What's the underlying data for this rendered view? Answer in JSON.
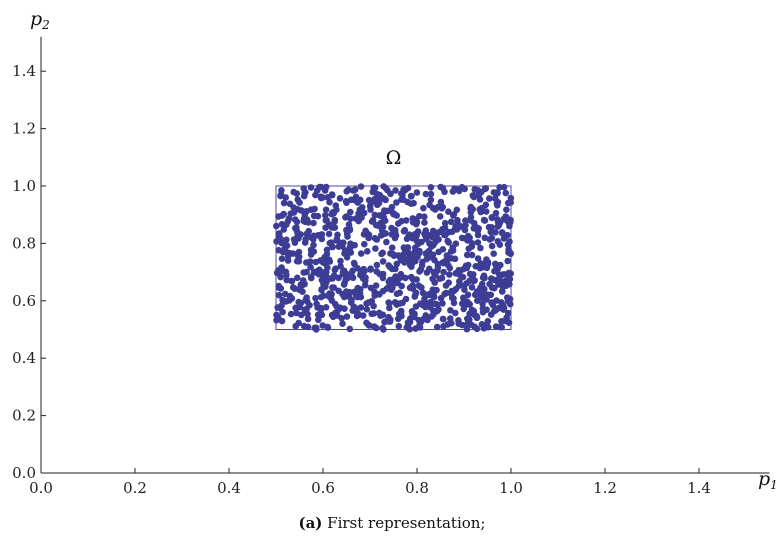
{
  "chart_data": {
    "type": "scatter",
    "title": "",
    "xlabel": "p",
    "xlabel_sub": "1",
    "ylabel": "p",
    "ylabel_sub": "2",
    "xlim": [
      0,
      1.55
    ],
    "ylim": [
      0,
      1.52
    ],
    "xticks": [
      0.0,
      0.2,
      0.4,
      0.6,
      0.8,
      1.0,
      1.2,
      1.4
    ],
    "yticks": [
      0.0,
      0.2,
      0.4,
      0.6,
      0.8,
      1.0,
      1.2,
      1.4
    ],
    "xtick_labels": [
      "0.0",
      "0.2",
      "0.4",
      "0.6",
      "0.8",
      "1.0",
      "1.2",
      "1.4"
    ],
    "ytick_labels": [
      "0.0",
      "0.2",
      "0.4",
      "0.6",
      "0.8",
      "1.0",
      "1.2",
      "1.4"
    ],
    "grid": false,
    "region": {
      "label": "Ω",
      "x_range": [
        0.5,
        1.0
      ],
      "y_range": [
        0.5,
        1.0
      ]
    },
    "series": [
      {
        "point_count": 1000,
        "distribution": "uniform",
        "x_range": [
          0.5,
          1.0
        ],
        "y_range": [
          0.5,
          1.0
        ],
        "color": "#3d3d96"
      }
    ],
    "colors": {
      "points": "#3d3d96",
      "region_border": "#4a4a9a",
      "axis": "#222222"
    }
  },
  "caption": {
    "tag": "(a)",
    "text": " First representation;"
  }
}
